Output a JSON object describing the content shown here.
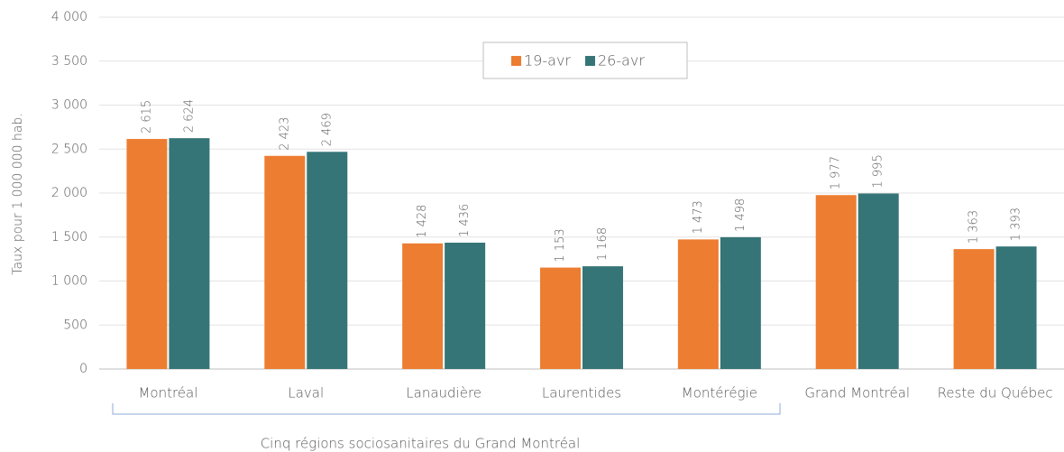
{
  "chart_data": {
    "type": "bar",
    "ylabel": "Taux pour 1 000 000 hab.",
    "annotation": "Cinq régions sociosanitaires du Grand Montréal",
    "categories": [
      "Montréal",
      "Laval",
      "Lanaudière",
      "Laurentides",
      "Montérégie",
      "Grand Montréal",
      "Reste du Québec"
    ],
    "series": [
      {
        "name": "19-avr",
        "color": "#ED7D31",
        "values": [
          2615,
          2423,
          1428,
          1153,
          1473,
          1977,
          1363
        ],
        "value_labels": [
          "2 615",
          "2 423",
          "1 428",
          "1 153",
          "1 473",
          "1 977",
          "1 363"
        ]
      },
      {
        "name": "26-avr",
        "color": "#367577",
        "values": [
          2624,
          2469,
          1436,
          1168,
          1498,
          1995,
          1393
        ],
        "value_labels": [
          "2 624",
          "2 469",
          "1 436",
          "1 168",
          "1 498",
          "1 995",
          "1 393"
        ]
      }
    ],
    "ylim": [
      0,
      4000
    ],
    "yticks": [
      0,
      500,
      {
        "value": 1000,
        "label": "1 000"
      },
      {
        "value": 1500,
        "label": "1 500"
      },
      {
        "value": 2000,
        "label": "2 000"
      },
      {
        "value": 2500,
        "label": "2 500"
      },
      {
        "value": 3000,
        "label": "3 000"
      },
      {
        "value": 3500,
        "label": "3 500"
      },
      {
        "value": 4000,
        "label": "4 000"
      }
    ],
    "grid": true,
    "legend": "top"
  }
}
